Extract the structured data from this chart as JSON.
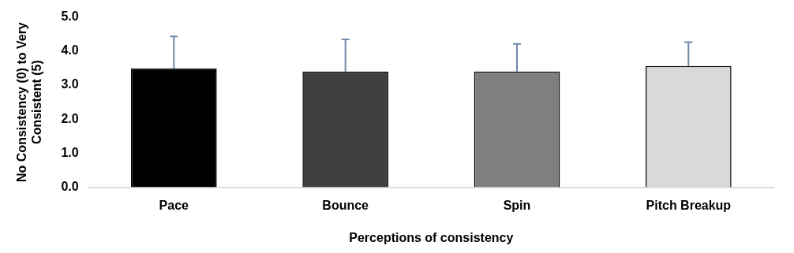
{
  "chart_data": {
    "type": "bar",
    "xlabel": "Perceptions of consistency",
    "ylabel": "No Consistency (0) to Very Consistent (5)",
    "categories": [
      "Pace",
      "Bounce",
      "Spin",
      "Pitch Breakup"
    ],
    "values": [
      3.49,
      3.4,
      3.4,
      3.56
    ],
    "colors": [
      "#000000",
      "#404040",
      "#7f7f7f",
      "#d9d9d9"
    ],
    "errors": [
      [
        3.49,
        4.43
      ],
      [
        3.4,
        4.34
      ],
      [
        3.4,
        4.21
      ],
      [
        3.56,
        4.26
      ]
    ],
    "ylim": [
      0,
      5
    ],
    "yticks": [
      {
        "value": 0,
        "label": "0.0"
      },
      {
        "value": 1,
        "label": "1.0"
      },
      {
        "value": 2,
        "label": "2.0"
      },
      {
        "value": 3,
        "label": "3.0"
      },
      {
        "value": 4,
        "label": "4.0"
      },
      {
        "value": 5,
        "label": "5.0"
      }
    ],
    "grid": false,
    "legend": false
  }
}
